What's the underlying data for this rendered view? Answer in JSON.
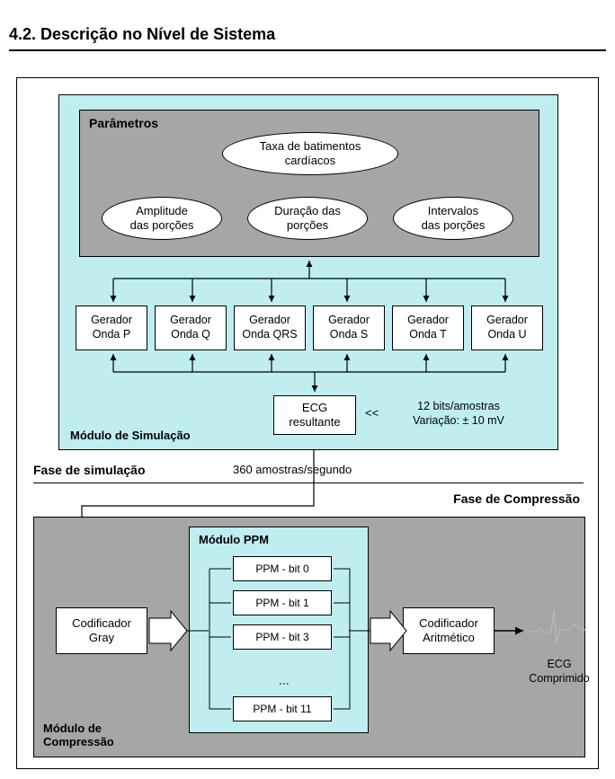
{
  "section_title": "4.2. Descrição no Nível de Sistema",
  "sim": {
    "module_label": "Módulo de Simulação",
    "param_label": "Parâmetros",
    "ellipse_top": "Taxa de batimentos\ncardíacos",
    "ellipse_left": "Amplitude\ndas porções",
    "ellipse_mid": "Duração das\nporções",
    "ellipse_right": "Intervalos\ndas porções",
    "gens": [
      "Gerador\nOnda P",
      "Gerador\nOnda Q",
      "Gerador\nOnda QRS",
      "Gerador\nOnda S",
      "Gerador\nOnda T",
      "Gerador\nOnda U"
    ],
    "ecg_result": "ECG\nresultante",
    "annot_symbol": "<<",
    "annot_line1": "12 bits/amostras",
    "annot_line2": "Variação: ± 10 mV"
  },
  "phases": {
    "sim": "Fase de simulação",
    "comp": "Fase de Compressão",
    "samples": "360 amostras/segundo"
  },
  "comp": {
    "module_label": "Módulo de\nCompressão",
    "ppm_label": "Módulo PPM",
    "ppm_boxes": [
      "PPM - bit 0",
      "PPM - bit 1",
      "PPM - bit 3",
      "PPM - bit 11"
    ],
    "gray": "Codificador\nGray",
    "arith": "Codificador\nAritmético",
    "out_label": "ECG\nComprimido"
  },
  "colors": {
    "cyan": "#c0eef0",
    "gray": "#a6a6a6",
    "white": "#ffffff",
    "black": "#000000",
    "wave": "#b8b8b8"
  }
}
